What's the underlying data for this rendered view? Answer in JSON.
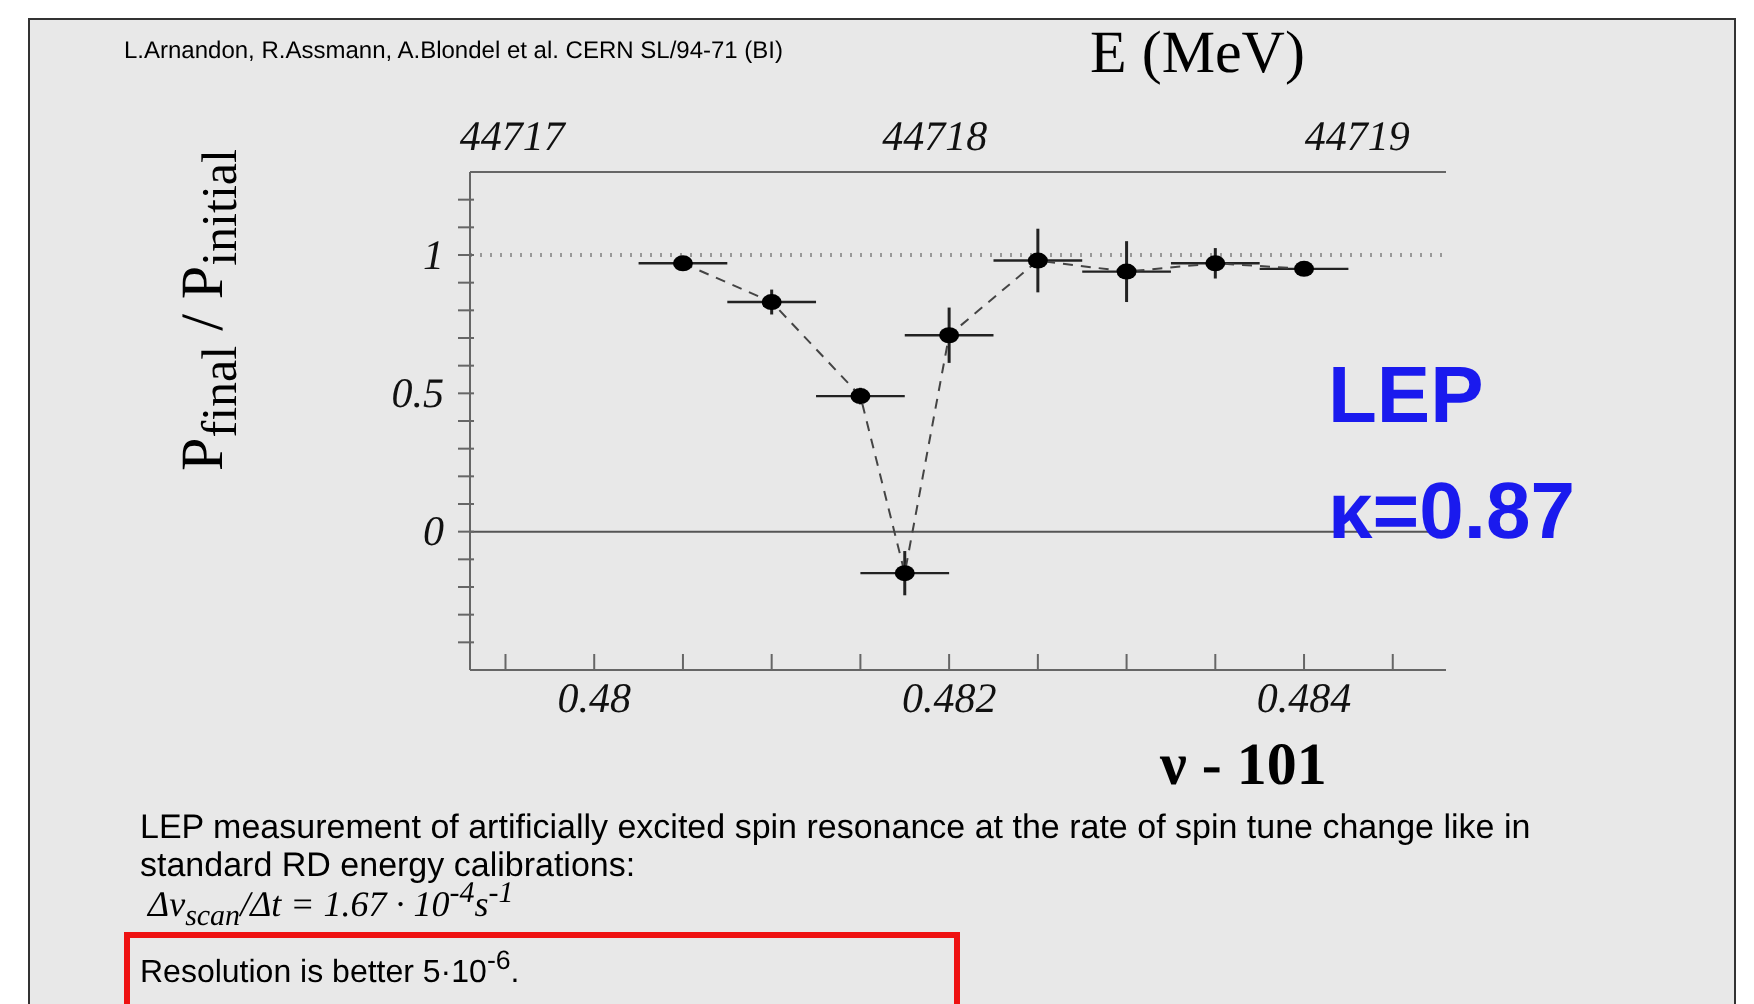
{
  "chart_data": {
    "type": "line",
    "x2label": "E (MeV)",
    "xlabel": "ν - 101",
    "ylabel": "P$_{final}$ / P$_{initial}$",
    "annotations": [
      "L.Arnandon, R.Assmann, A.Blondel et al. CERN SL/94-71 (BI)",
      "LEP",
      "κ=0.87",
      "LEP measurement of artificially excited spin resonance at the rate of spin tune change like in standard RD energy calibrations:",
      "Δν$_{scan}$/Δt = 1.67 · 10$^{-4}$s$^{-1}$",
      "Resolution is better 5·10$^{-6}$."
    ],
    "series": [
      {
        "color": "#000000",
        "marker": "circle",
        "line_style": "dashed",
        "x": [
          0.4805,
          0.481,
          0.4815,
          0.48175,
          0.482,
          0.4825,
          0.483,
          0.4835,
          0.484
        ],
        "values": [
          0.97,
          0.83,
          0.49,
          -0.15,
          0.71,
          0.98,
          0.94,
          0.97,
          0.95
        ],
        "errors": [
          0.02,
          0.045,
          0.03,
          0.08,
          0.1,
          0.115,
          0.11,
          0.055,
          0.02
        ],
        "xerrors": [
          0.00025,
          0.00025,
          0.00025,
          0.00025,
          0.00025,
          0.00025,
          0.00025,
          0.00025,
          0.00025
        ]
      }
    ],
    "xlim": [
      0.4793,
      0.4848
    ],
    "xticks": [
      {
        "value": 0.4795,
        "label": null
      },
      0.48,
      {
        "value": 0.4805,
        "label": null
      },
      {
        "value": 0.481,
        "label": null
      },
      {
        "value": 0.4815,
        "label": null
      },
      0.482,
      {
        "value": 0.4825,
        "label": null
      },
      {
        "value": 0.483,
        "label": null
      },
      {
        "value": 0.4835,
        "label": null
      },
      0.484,
      {
        "value": 0.4845,
        "label": null
      }
    ],
    "x2lim": [
      44716.9,
      44719.21
    ],
    "x2ticks": [
      44717,
      44718,
      44719
    ],
    "ylim": [
      -0.5,
      1.3
    ],
    "yticks": [
      {
        "value": -0.4,
        "label": null
      },
      {
        "value": -0.3,
        "label": null
      },
      {
        "value": -0.2,
        "label": null
      },
      {
        "value": -0.1,
        "label": null
      },
      0,
      {
        "value": 0.1,
        "label": null
      },
      {
        "value": 0.2,
        "label": null
      },
      {
        "value": 0.3,
        "label": null
      },
      {
        "value": 0.4,
        "label": null
      },
      0.5,
      {
        "value": 0.6,
        "label": null
      },
      {
        "value": 0.7,
        "label": null
      },
      {
        "value": 0.8,
        "label": null
      },
      {
        "value": 0.9,
        "label": null
      },
      1,
      {
        "value": 1.1,
        "label": null
      },
      {
        "value": 1.2,
        "label": null
      }
    ],
    "ref_lines": [
      {
        "axis": "y",
        "value": 1,
        "line_style": "dotted",
        "color": "#999999"
      },
      {
        "axis": "y",
        "value": 0,
        "line_style": "solid",
        "color": "#555555"
      }
    ],
    "grid": false,
    "legend": false
  }
}
